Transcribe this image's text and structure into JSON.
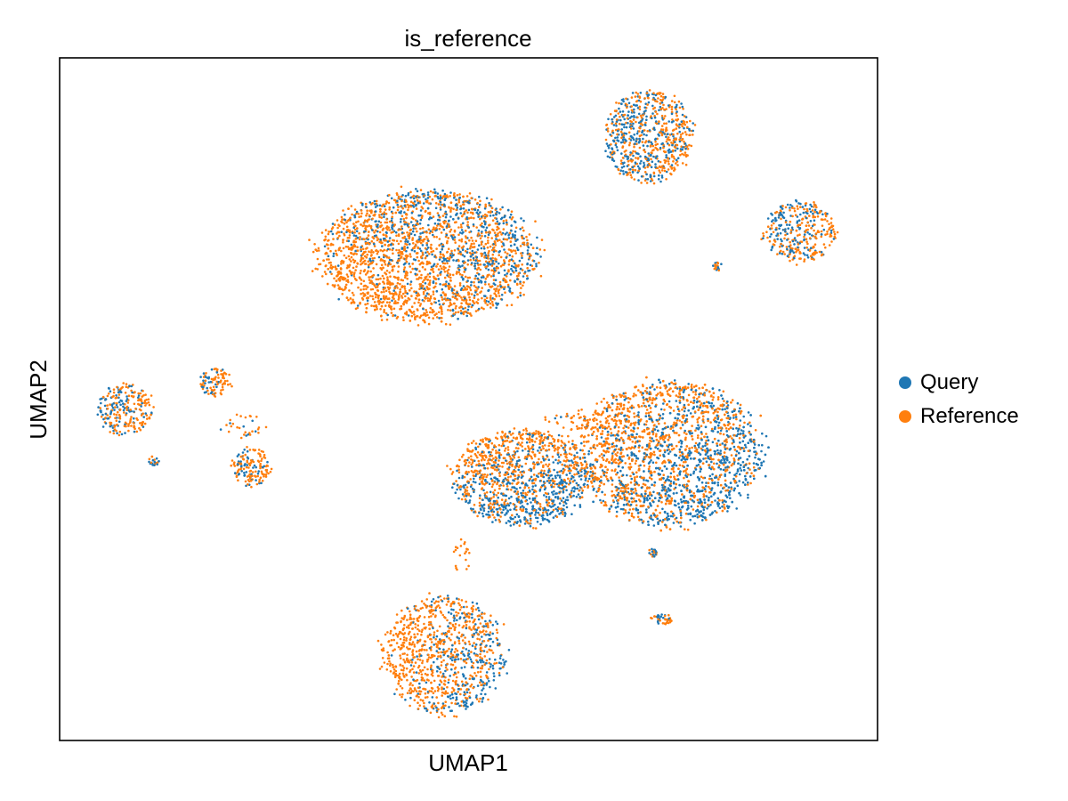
{
  "chart_data": {
    "type": "scatter",
    "title": "is_reference",
    "xlabel": "UMAP1",
    "ylabel": "UMAP2",
    "xlim": [
      0,
      100
    ],
    "ylim": [
      0,
      100
    ],
    "x_ticks": [],
    "y_ticks": [],
    "grid": false,
    "legend_position": "right",
    "series": [
      {
        "name": "Query",
        "color": "#1f77b4"
      },
      {
        "name": "Reference",
        "color": "#ff7f0e"
      }
    ],
    "clusters": [
      {
        "cx": 45.0,
        "cy": 71.0,
        "rx": 13.5,
        "ry": 9.5,
        "n": 2600,
        "query_frac": 0.3,
        "blue_dx": 0.45,
        "blue_dy": 0.35
      },
      {
        "cx": 74.5,
        "cy": 42.0,
        "rx": 11.5,
        "ry": 10.5,
        "n": 2800,
        "query_frac": 0.45,
        "blue_dx": 0.55,
        "blue_dy": -0.35
      },
      {
        "cx": 56.5,
        "cy": 38.5,
        "rx": 8.5,
        "ry": 7.0,
        "n": 1200,
        "query_frac": 0.45,
        "blue_dx": 0.35,
        "blue_dy": -0.6
      },
      {
        "cx": 47.0,
        "cy": 12.5,
        "rx": 7.5,
        "ry": 8.5,
        "n": 1000,
        "query_frac": 0.3,
        "blue_dx": 0.75,
        "blue_dy": -0.2
      },
      {
        "cx": 72.0,
        "cy": 88.5,
        "rx": 5.5,
        "ry": 6.8,
        "n": 700,
        "query_frac": 0.45,
        "blue_dx": -0.4,
        "blue_dy": 0.2
      },
      {
        "cx": 90.5,
        "cy": 74.5,
        "rx": 4.5,
        "ry": 4.5,
        "n": 350,
        "query_frac": 0.45,
        "blue_dx": -0.4,
        "blue_dy": 0.1
      },
      {
        "cx": 8.0,
        "cy": 48.5,
        "rx": 3.3,
        "ry": 3.8,
        "n": 240,
        "query_frac": 0.45,
        "blue_dx": -0.5,
        "blue_dy": 0.1
      },
      {
        "cx": 23.5,
        "cy": 40.0,
        "rx": 2.5,
        "ry": 2.8,
        "n": 150,
        "query_frac": 0.35,
        "blue_dx": -0.5,
        "blue_dy": -0.2
      },
      {
        "cx": 19.0,
        "cy": 52.5,
        "rx": 2.0,
        "ry": 2.0,
        "n": 90,
        "query_frac": 0.25,
        "blue_dx": -0.6,
        "blue_dy": -0.3
      },
      {
        "cx": 72.5,
        "cy": 27.5,
        "rx": 0.6,
        "ry": 0.6,
        "n": 25,
        "query_frac": 0.6,
        "blue_dx": 0,
        "blue_dy": 0
      },
      {
        "cx": 73.8,
        "cy": 17.8,
        "rx": 1.4,
        "ry": 0.7,
        "n": 40,
        "query_frac": 0.5,
        "blue_dx": -0.5,
        "blue_dy": 0.3
      },
      {
        "cx": 80.5,
        "cy": 69.5,
        "rx": 0.6,
        "ry": 0.6,
        "n": 18,
        "query_frac": 0.6,
        "blue_dx": 0,
        "blue_dy": 0
      },
      {
        "cx": 11.5,
        "cy": 41.0,
        "rx": 0.7,
        "ry": 0.7,
        "n": 18,
        "query_frac": 0.5,
        "blue_dx": 0,
        "blue_dy": 0
      },
      {
        "cx": 63.0,
        "cy": 47.0,
        "rx": 4.0,
        "ry": 1.5,
        "n": 45,
        "query_frac": 0.05,
        "blue_dx": 0,
        "blue_dy": 0
      },
      {
        "cx": 49.0,
        "cy": 27.0,
        "rx": 1.2,
        "ry": 2.5,
        "n": 20,
        "query_frac": 0.05,
        "blue_dx": 0,
        "blue_dy": 0
      },
      {
        "cx": 22.5,
        "cy": 46.0,
        "rx": 3.0,
        "ry": 1.8,
        "n": 30,
        "query_frac": 0.1,
        "blue_dx": 0,
        "blue_dy": 0
      },
      {
        "cx": 69.0,
        "cy": 36.5,
        "rx": 0.8,
        "ry": 1.2,
        "n": 20,
        "query_frac": 0.3,
        "blue_dx": 0,
        "blue_dy": 0
      }
    ]
  }
}
